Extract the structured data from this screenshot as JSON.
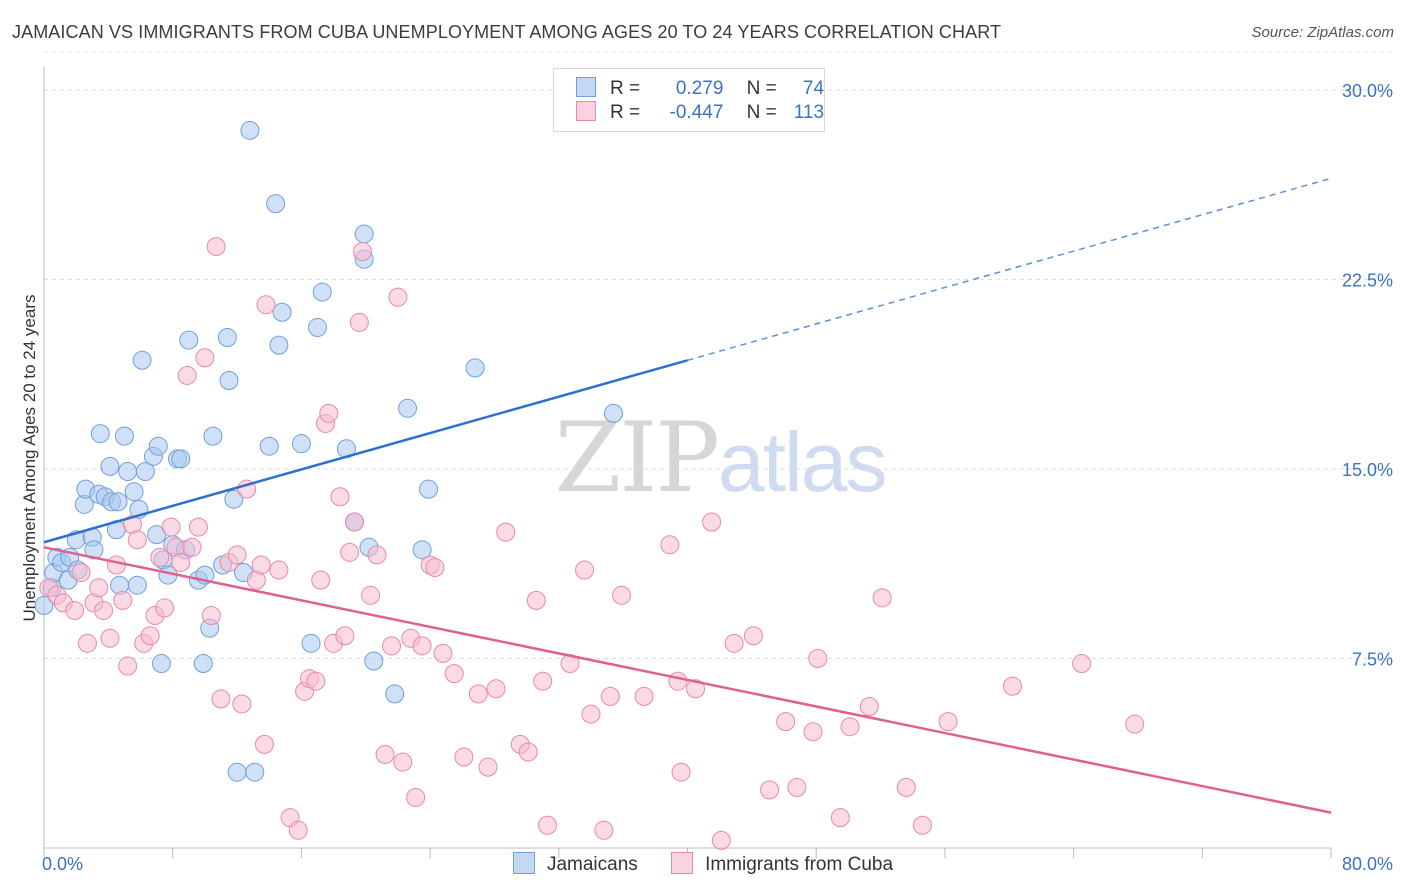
{
  "title": "JAMAICAN VS IMMIGRANTS FROM CUBA UNEMPLOYMENT AMONG AGES 20 TO 24 YEARS CORRELATION CHART",
  "source": "Source: ZipAtlas.com",
  "watermark": {
    "part1": "ZIP",
    "part2": "atlas"
  },
  "legend": {
    "rows": [
      {
        "r_label": "R =",
        "r_value": "0.279",
        "n_label": "N =",
        "n_value": "74",
        "color": "#a9c7ee",
        "border": "#6f9fdc"
      },
      {
        "r_label": "R =",
        "r_value": "-0.447",
        "n_label": "N =",
        "n_value": "113",
        "color": "#f7bcd0",
        "border": "#e58aaa"
      }
    ]
  },
  "bottom_legend": [
    "Jamaicans",
    "Immigrants from Cuba"
  ],
  "chart_data": {
    "type": "scatter",
    "title": "JAMAICAN VS IMMIGRANTS FROM CUBA UNEMPLOYMENT AMONG AGES 20 TO 24 YEARS CORRELATION CHART",
    "xlabel": "",
    "ylabel": "Unemployment Among Ages 20 to 24 years",
    "xlim": [
      0,
      80
    ],
    "ylim": [
      0,
      31.5
    ],
    "x_tick_labels": [
      "0.0%",
      "80.0%"
    ],
    "y_ticks": [
      7.5,
      15.0,
      22.5,
      30.0
    ],
    "y_tick_labels": [
      "7.5%",
      "15.0%",
      "22.5%",
      "30.0%"
    ],
    "grid": true,
    "legend_position": "top-center",
    "series": [
      {
        "name": "Jamaicans",
        "color": "#6f9fdc",
        "fill": "#a9c7ee",
        "trend": {
          "x": [
            0,
            40
          ],
          "y": [
            12.1,
            19.3
          ],
          "dashed_to": [
            80,
            26.5
          ]
        },
        "points": [
          [
            0.0,
            9.6
          ],
          [
            0.5,
            10.3
          ],
          [
            0.6,
            10.9
          ],
          [
            0.8,
            11.5
          ],
          [
            1.1,
            11.3
          ],
          [
            1.5,
            10.6
          ],
          [
            1.6,
            11.5
          ],
          [
            2.0,
            12.2
          ],
          [
            2.1,
            11.0
          ],
          [
            2.5,
            13.6
          ],
          [
            2.6,
            14.2
          ],
          [
            3.0,
            12.3
          ],
          [
            3.1,
            11.8
          ],
          [
            3.4,
            14.0
          ],
          [
            3.5,
            16.4
          ],
          [
            3.8,
            13.9
          ],
          [
            4.1,
            15.1
          ],
          [
            4.2,
            13.7
          ],
          [
            4.5,
            12.6
          ],
          [
            4.6,
            13.7
          ],
          [
            4.7,
            10.4
          ],
          [
            5.0,
            16.3
          ],
          [
            5.2,
            14.9
          ],
          [
            5.6,
            14.1
          ],
          [
            5.8,
            10.4
          ],
          [
            5.9,
            13.4
          ],
          [
            6.1,
            19.3
          ],
          [
            6.3,
            14.9
          ],
          [
            6.8,
            15.5
          ],
          [
            7.0,
            12.4
          ],
          [
            7.1,
            15.9
          ],
          [
            7.3,
            7.3
          ],
          [
            7.4,
            11.4
          ],
          [
            7.7,
            10.8
          ],
          [
            8.0,
            12.0
          ],
          [
            8.3,
            15.4
          ],
          [
            8.5,
            15.4
          ],
          [
            8.8,
            11.8
          ],
          [
            9.0,
            20.1
          ],
          [
            9.6,
            10.6
          ],
          [
            9.9,
            7.3
          ],
          [
            10.0,
            10.8
          ],
          [
            10.3,
            8.7
          ],
          [
            10.5,
            16.3
          ],
          [
            11.1,
            11.2
          ],
          [
            11.5,
            18.5
          ],
          [
            11.4,
            20.2
          ],
          [
            11.8,
            13.8
          ],
          [
            12.0,
            3.0
          ],
          [
            12.4,
            10.9
          ],
          [
            12.8,
            28.4
          ],
          [
            13.1,
            3.0
          ],
          [
            14.0,
            15.9
          ],
          [
            14.4,
            25.5
          ],
          [
            14.6,
            19.9
          ],
          [
            14.8,
            21.2
          ],
          [
            16.0,
            16.0
          ],
          [
            16.6,
            8.1
          ],
          [
            17.0,
            20.6
          ],
          [
            17.3,
            22.0
          ],
          [
            18.8,
            15.8
          ],
          [
            19.3,
            12.9
          ],
          [
            19.9,
            24.3
          ],
          [
            19.9,
            23.3
          ],
          [
            20.2,
            11.9
          ],
          [
            20.5,
            7.4
          ],
          [
            21.8,
            6.1
          ],
          [
            22.6,
            17.4
          ],
          [
            23.5,
            11.8
          ],
          [
            23.9,
            14.2
          ],
          [
            26.8,
            19.0
          ],
          [
            35.4,
            17.2
          ]
        ]
      },
      {
        "name": "Immigrants from Cuba",
        "color": "#e58aaa",
        "fill": "#f7bcd0",
        "trend": {
          "x": [
            0,
            80
          ],
          "y": [
            11.9,
            1.4
          ]
        },
        "points": [
          [
            0.3,
            10.3
          ],
          [
            0.8,
            10.0
          ],
          [
            1.2,
            9.7
          ],
          [
            1.9,
            9.4
          ],
          [
            2.3,
            10.9
          ],
          [
            2.7,
            8.1
          ],
          [
            3.1,
            9.7
          ],
          [
            3.4,
            10.3
          ],
          [
            3.7,
            9.4
          ],
          [
            4.1,
            8.3
          ],
          [
            4.5,
            11.2
          ],
          [
            4.9,
            9.8
          ],
          [
            5.2,
            7.2
          ],
          [
            5.5,
            12.8
          ],
          [
            5.8,
            12.2
          ],
          [
            6.2,
            8.1
          ],
          [
            6.6,
            8.4
          ],
          [
            6.9,
            9.2
          ],
          [
            7.2,
            11.5
          ],
          [
            7.5,
            9.5
          ],
          [
            7.9,
            12.7
          ],
          [
            8.2,
            11.9
          ],
          [
            8.5,
            11.3
          ],
          [
            8.9,
            18.7
          ],
          [
            9.2,
            11.9
          ],
          [
            9.6,
            12.7
          ],
          [
            10.0,
            19.4
          ],
          [
            10.4,
            9.2
          ],
          [
            10.7,
            23.8
          ],
          [
            11.0,
            5.9
          ],
          [
            11.5,
            11.3
          ],
          [
            12.0,
            11.6
          ],
          [
            12.3,
            5.7
          ],
          [
            12.6,
            14.2
          ],
          [
            13.2,
            10.6
          ],
          [
            13.5,
            11.2
          ],
          [
            13.7,
            4.1
          ],
          [
            13.8,
            21.5
          ],
          [
            14.6,
            11.0
          ],
          [
            15.3,
            1.2
          ],
          [
            15.8,
            0.7
          ],
          [
            16.2,
            6.2
          ],
          [
            16.5,
            6.7
          ],
          [
            16.9,
            6.6
          ],
          [
            17.2,
            10.6
          ],
          [
            17.5,
            16.8
          ],
          [
            17.7,
            17.2
          ],
          [
            18.0,
            8.1
          ],
          [
            18.4,
            13.9
          ],
          [
            18.7,
            8.4
          ],
          [
            19.0,
            11.7
          ],
          [
            19.3,
            12.9
          ],
          [
            19.6,
            20.8
          ],
          [
            19.8,
            23.6
          ],
          [
            20.3,
            10.0
          ],
          [
            20.7,
            11.6
          ],
          [
            21.2,
            3.7
          ],
          [
            21.6,
            8.0
          ],
          [
            22.0,
            21.8
          ],
          [
            22.3,
            3.4
          ],
          [
            22.8,
            8.3
          ],
          [
            23.1,
            2.0
          ],
          [
            23.5,
            8.0
          ],
          [
            24.0,
            11.2
          ],
          [
            24.3,
            11.1
          ],
          [
            24.8,
            7.7
          ],
          [
            25.5,
            6.9
          ],
          [
            26.1,
            3.6
          ],
          [
            27.0,
            6.1
          ],
          [
            27.6,
            3.2
          ],
          [
            28.1,
            6.3
          ],
          [
            28.7,
            12.5
          ],
          [
            29.6,
            4.1
          ],
          [
            30.1,
            3.8
          ],
          [
            30.6,
            9.8
          ],
          [
            31.0,
            6.6
          ],
          [
            31.3,
            0.9
          ],
          [
            32.7,
            7.3
          ],
          [
            33.6,
            11.0
          ],
          [
            34.0,
            5.3
          ],
          [
            34.8,
            0.7
          ],
          [
            35.2,
            6.0
          ],
          [
            35.9,
            10.0
          ],
          [
            37.3,
            6.0
          ],
          [
            38.9,
            12.0
          ],
          [
            39.4,
            6.6
          ],
          [
            39.6,
            3.0
          ],
          [
            40.5,
            6.3
          ],
          [
            41.5,
            12.9
          ],
          [
            42.1,
            0.3
          ],
          [
            42.9,
            8.1
          ],
          [
            44.1,
            8.4
          ],
          [
            45.1,
            2.3
          ],
          [
            46.1,
            5.0
          ],
          [
            46.8,
            2.4
          ],
          [
            47.8,
            4.6
          ],
          [
            48.1,
            7.5
          ],
          [
            49.5,
            1.2
          ],
          [
            50.1,
            4.8
          ],
          [
            51.3,
            5.6
          ],
          [
            52.1,
            9.9
          ],
          [
            53.6,
            2.4
          ],
          [
            54.6,
            0.9
          ],
          [
            56.2,
            5.0
          ],
          [
            60.2,
            6.4
          ],
          [
            64.5,
            7.3
          ],
          [
            67.8,
            4.9
          ]
        ]
      }
    ]
  }
}
